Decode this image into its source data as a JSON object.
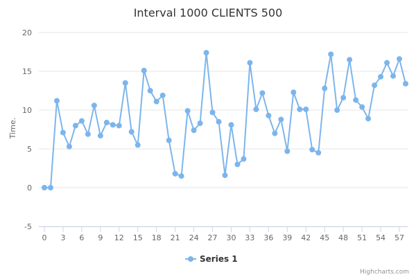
{
  "chart_data": {
    "type": "line",
    "title": "Interval 1000 CLIENTS 500",
    "ylabel": "Time.",
    "xlabel": "",
    "xlim": [
      0,
      58
    ],
    "ylim": [
      -5,
      20
    ],
    "yticks": [
      -5,
      0,
      5,
      10,
      15,
      20
    ],
    "xticks": [
      0,
      3,
      6,
      9,
      12,
      15,
      18,
      21,
      24,
      27,
      30,
      33,
      36,
      39,
      42,
      45,
      48,
      51,
      54,
      57
    ],
    "grid": "horizontal",
    "legend": "bottom-center",
    "series": [
      {
        "name": "Series 1",
        "color": "#7cb5ec",
        "x": [
          0,
          1,
          2,
          3,
          4,
          5,
          6,
          7,
          8,
          9,
          10,
          11,
          12,
          13,
          14,
          15,
          16,
          17,
          18,
          19,
          20,
          21,
          22,
          23,
          24,
          25,
          26,
          27,
          28,
          29,
          30,
          31,
          32,
          33,
          34,
          35,
          36,
          37,
          38,
          39,
          40,
          41,
          42,
          43,
          44,
          45,
          46,
          47,
          48,
          49,
          50,
          51,
          52,
          53,
          54,
          55,
          56,
          57,
          58
        ],
        "values": [
          0,
          0,
          11.2,
          7.1,
          5.3,
          8,
          8.6,
          6.9,
          10.6,
          6.7,
          8.4,
          8.1,
          8,
          13.5,
          7.2,
          5.5,
          15.1,
          12.5,
          11.1,
          11.9,
          6.1,
          1.8,
          1.5,
          9.9,
          7.4,
          8.3,
          17.4,
          9.7,
          8.5,
          1.6,
          8.1,
          3,
          3.7,
          16.1,
          10.1,
          12.2,
          9.3,
          7,
          8.8,
          4.7,
          12.3,
          10.1,
          10.1,
          4.9,
          4.5,
          12.8,
          17.2,
          10,
          11.6,
          16.5,
          11.3,
          10.4,
          8.9,
          13.2,
          14.3,
          16.1,
          14.4,
          16.6,
          13.4
        ]
      }
    ]
  },
  "credits": "Highcharts.com"
}
